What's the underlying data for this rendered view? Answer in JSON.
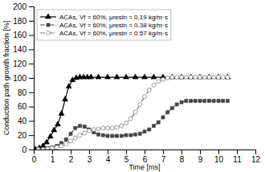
{
  "chart_data": {
    "type": "line",
    "title": "",
    "xlabel": "Time [ms]",
    "ylabel": "Conduction path growth fraction [%]",
    "xlim": [
      0,
      12
    ],
    "ylim": [
      0,
      200
    ],
    "xticks": [
      0,
      1,
      2,
      3,
      4,
      5,
      6,
      7,
      8,
      9,
      10,
      11,
      12
    ],
    "yticks": [
      0,
      20,
      40,
      60,
      80,
      100,
      120,
      140,
      160,
      180,
      200
    ],
    "grid": false,
    "legend": "upper left",
    "series": [
      {
        "name": "ACAs, Vf = 60%, μresin = 0.19 kg/m·s",
        "color": "black",
        "marker": "triangle",
        "line_style": "solid",
        "x": [
          0.1,
          0.3,
          0.5,
          0.7,
          0.9,
          1.1,
          1.3,
          1.5,
          1.7,
          1.9,
          2.1,
          2.3,
          2.5,
          2.7,
          2.9,
          3.1,
          3.5,
          4.0,
          4.5,
          5.0,
          5.5,
          6.0,
          6.5,
          7.0,
          7.5,
          8.0,
          8.5,
          9.0,
          9.5,
          10.0,
          10.5
        ],
        "values": [
          0,
          2,
          5,
          10,
          18,
          27,
          35,
          50,
          70,
          88,
          97,
          100,
          101,
          101,
          101,
          101,
          101,
          101,
          101,
          101,
          101,
          101,
          101,
          101,
          101,
          101,
          101,
          101,
          101,
          101,
          101
        ]
      },
      {
        "name": "ACAs, Vf = 60%, μresin = 0.38 kg/m·s",
        "color": "#444444",
        "marker": "square",
        "line_style": "dashdot",
        "x": [
          0.25,
          0.5,
          0.75,
          1.0,
          1.25,
          1.5,
          1.75,
          2.0,
          2.25,
          2.5,
          2.75,
          3.0,
          3.25,
          3.5,
          3.75,
          4.0,
          4.25,
          4.5,
          4.75,
          5.0,
          5.25,
          5.5,
          5.75,
          6.0,
          6.25,
          6.5,
          6.75,
          7.0,
          7.25,
          7.5,
          7.75,
          8.0,
          8.25,
          8.5,
          8.75,
          9.0,
          9.25,
          9.5,
          9.75,
          10.0,
          10.25,
          10.5
        ],
        "values": [
          0,
          1,
          2,
          3,
          5,
          9,
          14,
          22,
          30,
          33,
          32,
          28,
          24,
          21,
          20,
          19,
          19,
          19,
          19,
          20,
          20,
          21,
          22,
          25,
          28,
          33,
          38,
          45,
          52,
          58,
          63,
          66,
          68,
          68,
          68,
          68,
          68,
          68,
          68,
          68,
          68,
          68
        ]
      },
      {
        "name": "ACAs, Vf = 60%, μresin = 0.57 kg/m·s",
        "color": "#777777",
        "marker": "circle-open",
        "line_style": "dashdot",
        "x": [
          0.25,
          0.5,
          0.75,
          1.0,
          1.25,
          1.5,
          1.75,
          2.0,
          2.25,
          2.5,
          2.75,
          3.0,
          3.25,
          3.5,
          3.75,
          4.0,
          4.25,
          4.5,
          4.75,
          5.0,
          5.25,
          5.5,
          5.75,
          6.0,
          6.25,
          6.5,
          6.75,
          7.0,
          7.25,
          7.5,
          7.75,
          8.0,
          8.25,
          8.5,
          8.75,
          9.0,
          9.25,
          9.5,
          9.75,
          10.0,
          10.25,
          10.5
        ],
        "values": [
          0,
          0,
          1,
          2,
          3,
          5,
          8,
          12,
          16,
          20,
          23,
          26,
          28,
          29,
          30,
          30,
          30,
          31,
          33,
          37,
          43,
          52,
          63,
          74,
          83,
          90,
          95,
          98,
          100,
          101,
          101,
          101,
          101,
          101,
          101,
          101,
          101,
          101,
          101,
          101,
          101,
          101
        ]
      }
    ]
  }
}
